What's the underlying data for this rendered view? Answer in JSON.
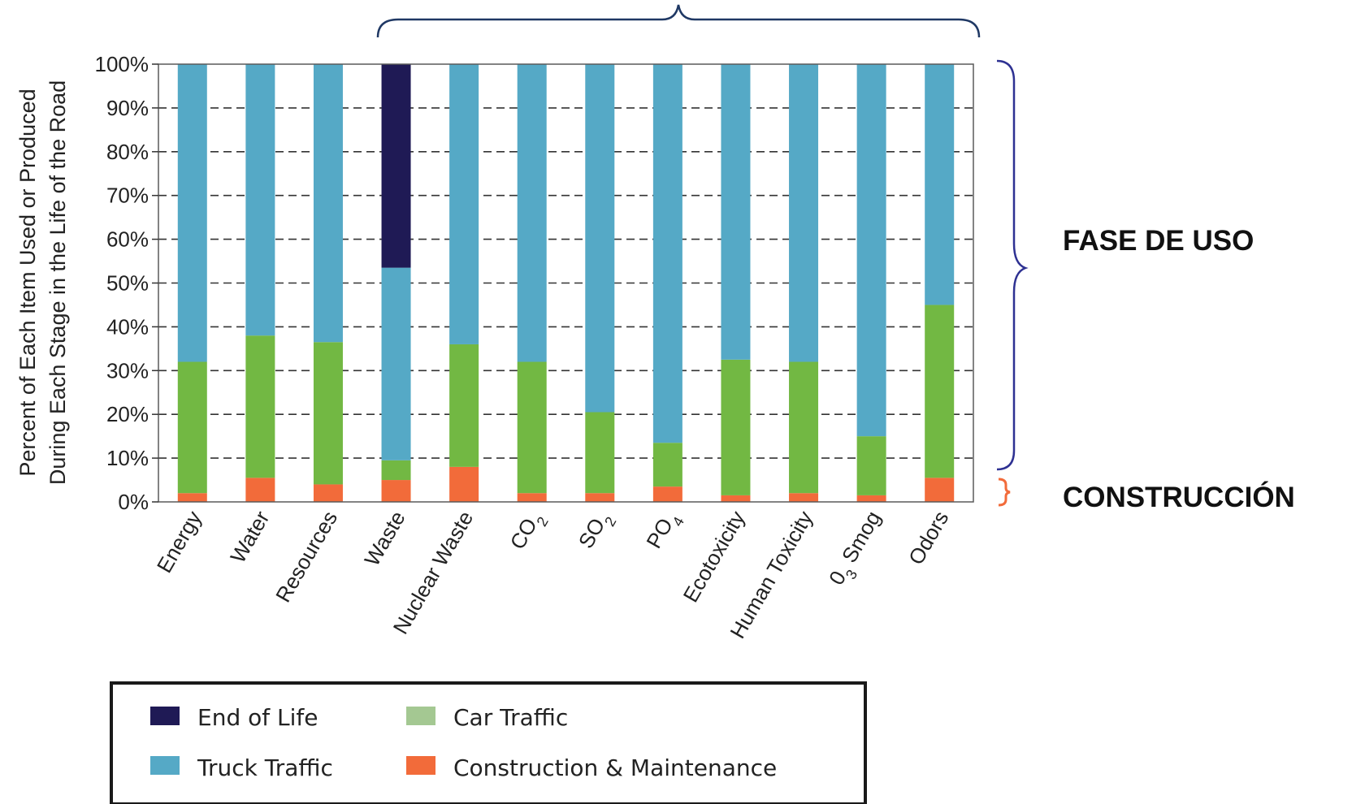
{
  "chart_data": {
    "type": "bar",
    "stacked": true,
    "ylabel_lines": [
      "Percent of Each Item Used or Produced",
      "During Each Stage in the Life of the Road"
    ],
    "yticks": [
      "0%",
      "10%",
      "20%",
      "30%",
      "40%",
      "50%",
      "60%",
      "70%",
      "80%",
      "90%",
      "100%"
    ],
    "ylim": [
      0,
      100
    ],
    "grid": "dashed horizontal",
    "categories": [
      {
        "base": "Energy",
        "sub": ""
      },
      {
        "base": "Water",
        "sub": ""
      },
      {
        "base": "Resources",
        "sub": ""
      },
      {
        "base": "Waste",
        "sub": ""
      },
      {
        "base": "Nuclear Waste",
        "sub": ""
      },
      {
        "base": "CO",
        "sub": "2"
      },
      {
        "base": "SO",
        "sub": "2"
      },
      {
        "base": "PO",
        "sub": "4"
      },
      {
        "base": "Ecotoxicity",
        "sub": ""
      },
      {
        "base": "Human Toxicity",
        "sub": ""
      },
      {
        "base": "0",
        "sub": "3",
        "rest": " Smog"
      },
      {
        "base": "Odors",
        "sub": ""
      }
    ],
    "series": [
      {
        "name": "Construction & Maintenance",
        "color": "#f26b3a",
        "values": [
          2,
          5.5,
          4,
          5,
          8,
          2,
          2,
          3.5,
          1.5,
          2,
          1.5,
          5.5
        ]
      },
      {
        "name": "Car Traffic",
        "color": "#72b843",
        "values": [
          30,
          32.5,
          32.5,
          4.5,
          28,
          30,
          18.5,
          10,
          31,
          30,
          13.5,
          39.5
        ]
      },
      {
        "name": "Truck Traffic",
        "color": "#55a9c6",
        "values": [
          68,
          62,
          63.5,
          44,
          64,
          68,
          79.5,
          86.5,
          67.5,
          68,
          85,
          55
        ]
      },
      {
        "name": "End of Life",
        "color": "#1f1a55",
        "values": [
          0,
          0,
          0,
          46.5,
          0,
          0,
          0,
          0,
          0,
          0,
          0,
          0
        ]
      }
    ],
    "legend": {
      "placement": "bottom-left",
      "entries": [
        {
          "label": "End of Life",
          "color": "#1f1a55"
        },
        {
          "label": "Car Traffic",
          "color": "#a4c892"
        },
        {
          "label": "Truck Traffic",
          "color": "#55a9c6"
        },
        {
          "label": "Construction & Maintenance",
          "color": "#f26b3a"
        }
      ]
    },
    "annotations": [
      {
        "text": "FASE DE USO",
        "brace_color": "#2e3192"
      },
      {
        "text": "CONSTRUCCIÓN",
        "brace_color": "#f26b3a"
      }
    ],
    "top_brace_color": "#1f3864"
  }
}
